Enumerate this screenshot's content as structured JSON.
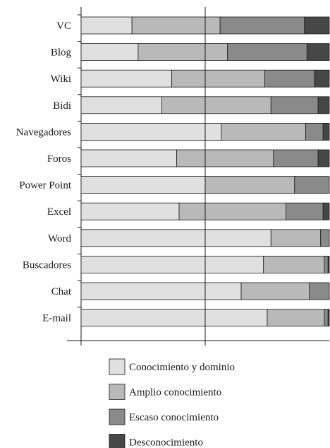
{
  "chart_data": {
    "type": "bar",
    "orientation": "horizontal",
    "stacked": true,
    "normalized": true,
    "title": "",
    "xlabel": "",
    "ylabel": "",
    "xlim": [
      0,
      100
    ],
    "grid": false,
    "legend_position": "bottom",
    "categories": [
      "VC",
      "Blog",
      "Wiki",
      "Bidi",
      "Navegadores",
      "Foros",
      "Power Point",
      "Excel",
      "Word",
      "Buscadores",
      "Chat",
      "E-mail"
    ],
    "series": [
      {
        "name": "Conocimiento y dominio",
        "color": "#e0e0e0",
        "values": [
          20.5,
          23,
          36.5,
          32.5,
          56.5,
          38.5,
          50,
          39.5,
          76.5,
          73.5,
          64.5,
          75
        ]
      },
      {
        "name": "Amplio conocimiento",
        "color": "#b9b9b9",
        "values": [
          35.5,
          36,
          37.5,
          44,
          34,
          39,
          36,
          43,
          20,
          24.5,
          27.5,
          23
        ]
      },
      {
        "name": "Escaso conocimiento",
        "color": "#8a8a8a",
        "values": [
          34,
          32,
          20,
          19,
          7,
          18,
          14,
          15,
          3.5,
          1.5,
          8,
          1.5
        ]
      },
      {
        "name": "Desconocimiento",
        "color": "#474747",
        "values": [
          10,
          9,
          6,
          4.5,
          2.5,
          4.5,
          0,
          2.5,
          0,
          0.5,
          0,
          0.5
        ]
      }
    ]
  }
}
